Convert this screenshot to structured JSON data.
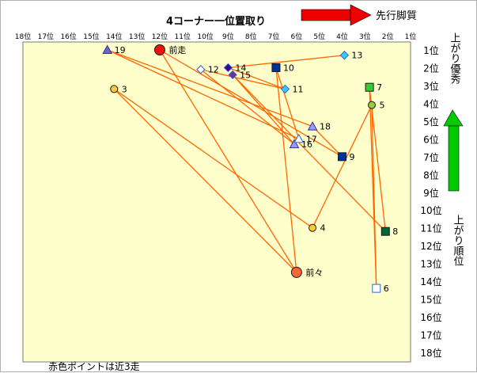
{
  "chart_data": {
    "type": "scatter",
    "title": "4コーナー一位置取り",
    "xlabel": "",
    "ylabel": "",
    "x_ticks": [
      "18位",
      "17位",
      "16位",
      "15位",
      "14位",
      "13位",
      "12位",
      "11位",
      "10位",
      "9位",
      "8位",
      "7位",
      "6位",
      "5位",
      "4位",
      "3位",
      "2位",
      "1位"
    ],
    "y_ticks": [
      "1位",
      "2位",
      "3位",
      "4位",
      "5位",
      "6位",
      "7位",
      "8位",
      "9位",
      "10位",
      "11位",
      "12位",
      "13位",
      "14位",
      "15位",
      "16位",
      "17位",
      "18位"
    ],
    "xlim": [
      18,
      1
    ],
    "ylim": [
      1,
      18
    ],
    "x_axis_note": "先行脚質",
    "y_axis_top_note": "上がり優秀",
    "y_axis_bottom_note": "上がり順位",
    "footnote": "赤色ポイントは近3走",
    "grid": false,
    "accent_colors": {
      "line": "#FF6600",
      "background": "#FFFFCC",
      "arrow_red": "#EE0000",
      "arrow_green": "#00CC00"
    },
    "points": [
      {
        "label": "前走",
        "x": 12.0,
        "y": 1.0,
        "marker": "circle-red-large",
        "color": "#EE1111"
      },
      {
        "label": "前々",
        "x": 6.0,
        "y": 13.5,
        "marker": "circle-orange-large",
        "color": "#FF6633"
      },
      {
        "label": "3",
        "x": 14.0,
        "y": 3.2,
        "marker": "circle",
        "color": "#FFCC33"
      },
      {
        "label": "4",
        "x": 5.3,
        "y": 11.0,
        "marker": "circle",
        "color": "#FFCC33"
      },
      {
        "label": "5",
        "x": 2.7,
        "y": 4.1,
        "marker": "circle",
        "color": "#99CC33"
      },
      {
        "label": "6",
        "x": 2.5,
        "y": 14.4,
        "marker": "square-open",
        "color": "#3366CC"
      },
      {
        "label": "7",
        "x": 2.8,
        "y": 3.1,
        "marker": "square",
        "color": "#33CC33"
      },
      {
        "label": "8",
        "x": 2.1,
        "y": 11.2,
        "marker": "square",
        "color": "#006633"
      },
      {
        "label": "9",
        "x": 4.0,
        "y": 7.0,
        "marker": "square",
        "color": "#003399"
      },
      {
        "label": "10",
        "x": 6.9,
        "y": 2.0,
        "marker": "square",
        "color": "#003399"
      },
      {
        "label": "11",
        "x": 6.5,
        "y": 3.2,
        "marker": "diamond",
        "color": "#33CCFF"
      },
      {
        "label": "12",
        "x": 10.2,
        "y": 2.1,
        "marker": "diamond-open",
        "color": "#3366CC"
      },
      {
        "label": "13",
        "x": 3.9,
        "y": 1.3,
        "marker": "diamond",
        "color": "#33CCFF"
      },
      {
        "label": "14",
        "x": 9.0,
        "y": 2.0,
        "marker": "diamond",
        "color": "#330099"
      },
      {
        "label": "15",
        "x": 8.8,
        "y": 2.4,
        "marker": "diamond",
        "color": "#663399"
      },
      {
        "label": "16",
        "x": 6.1,
        "y": 6.3,
        "marker": "triangle",
        "color": "#9999FF"
      },
      {
        "label": "17",
        "x": 5.9,
        "y": 6.0,
        "marker": "triangle-open",
        "color": "#3366CC"
      },
      {
        "label": "18",
        "x": 5.3,
        "y": 5.3,
        "marker": "triangle",
        "color": "#9999FF"
      },
      {
        "label": "19",
        "x": 14.3,
        "y": 1.0,
        "marker": "triangle",
        "color": "#6666CC"
      }
    ],
    "lines": [
      [
        "前走",
        "9"
      ],
      [
        "9",
        "18"
      ],
      [
        "18",
        "19"
      ],
      [
        "前走",
        "前々"
      ],
      [
        "前々",
        "3"
      ],
      [
        "3",
        "4"
      ],
      [
        "4",
        "5"
      ],
      [
        "5",
        "6"
      ],
      [
        "6",
        "7"
      ],
      [
        "7",
        "8"
      ],
      [
        "8",
        "15"
      ],
      [
        "15",
        "16"
      ],
      [
        "16",
        "12"
      ],
      [
        "12",
        "11"
      ],
      [
        "11",
        "14"
      ],
      [
        "14",
        "13"
      ],
      [
        "前々",
        "10"
      ],
      [
        "10",
        "17"
      ],
      [
        "17",
        "19"
      ]
    ]
  }
}
